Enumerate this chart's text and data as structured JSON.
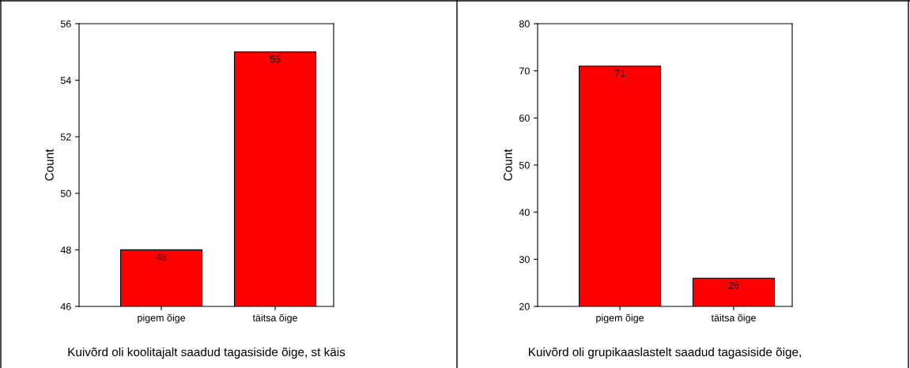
{
  "chart_data": [
    {
      "type": "bar",
      "xlabel": "Kuivõrd oli koolitajalt saadud tagasiside õige, st käis",
      "ylabel": "Count",
      "categories": [
        "pigem õige",
        "täitsa õige"
      ],
      "values": [
        48,
        55
      ],
      "color": "#ff0000",
      "ylim": [
        46,
        56
      ],
      "yticks": [
        46,
        48,
        50,
        52,
        54,
        56
      ],
      "data_labels": true,
      "grid": false,
      "legend": false
    },
    {
      "type": "bar",
      "xlabel": "Kuivõrd oli grupikaaslastelt saadud tagasiside õige,",
      "ylabel": "Count",
      "categories": [
        "pigem õige",
        "täitsa õige"
      ],
      "values": [
        71,
        26
      ],
      "color": "#ff0000",
      "ylim": [
        20,
        80
      ],
      "yticks": [
        20,
        30,
        40,
        50,
        60,
        70,
        80
      ],
      "data_labels": true,
      "grid": false,
      "legend": false
    }
  ]
}
